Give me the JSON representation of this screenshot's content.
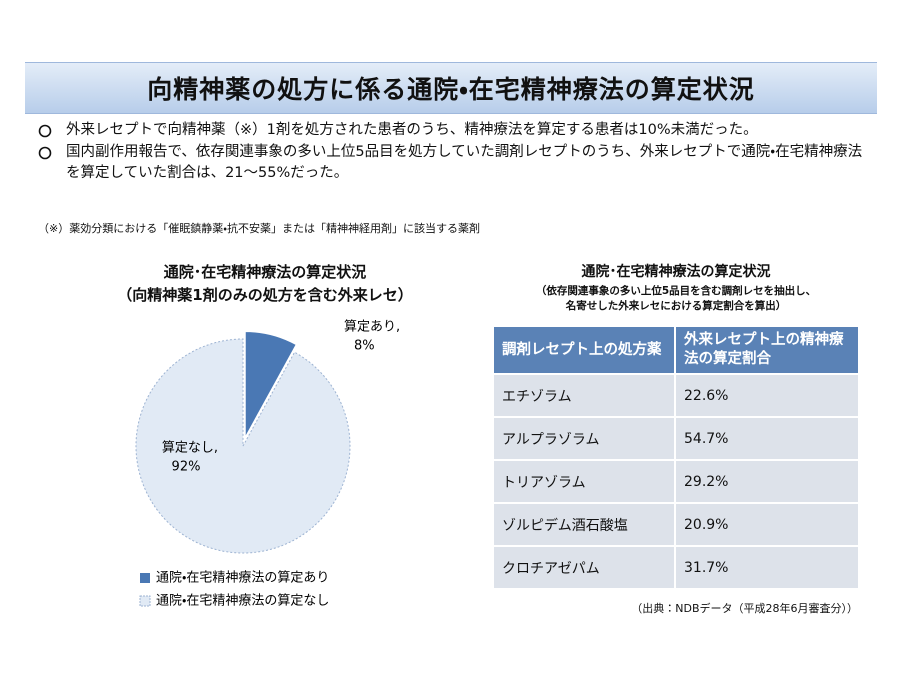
{
  "header": {
    "title": "向精神薬の処方に係る通院・在宅精神療法の算定状況"
  },
  "bullets": [
    "外来レセプトで向精神薬（※）1剤を処方された患者のうち、精神療法を算定する患者は10%未満だった。",
    "国内副作用報告で、依存関連事象の多い上位5品目を処方していた調剤レセプトのうち、外来レセプトで通院・在宅精神療法を算定していた割合は、21～55%だった。"
  ],
  "note": "（※）薬効分類における「催眠鎮静薬・抗不安薬」または「精神神経用剤」に該当する薬剤",
  "chart_data": {
    "type": "pie",
    "title": "通院･在宅精神療法の算定状況",
    "subtitle": "（向精神薬1剤のみの処方を含む外来レセ）",
    "categories": [
      "通院・在宅精神療法の算定あり",
      "通院・在宅精神療法の算定なし"
    ],
    "slice_labels": [
      "算定あり,",
      "算定なし,"
    ],
    "values": [
      8,
      92
    ],
    "value_labels": [
      "8%",
      "92%"
    ],
    "colors": [
      "#4a78b4",
      "#e1eaf5"
    ]
  },
  "table": {
    "title": "通院･在宅精神療法の算定状況",
    "subtitle": [
      "（依存関連事象の多い上位5品目を含む調剤レセを抽出し、",
      "名寄せした外来レセにおける算定割合を算出）"
    ],
    "header": [
      "調剤レセプト上の処方薬",
      "外来レセプト上の精神療法の算定割合"
    ],
    "rows": [
      [
        "エチゾラム",
        "22.6%"
      ],
      [
        "アルプラゾラム",
        "54.7%"
      ],
      [
        "トリアゾラム",
        "29.2%"
      ],
      [
        "ゾルピデム酒石酸塩",
        "20.9%"
      ],
      [
        "クロチアゼパム",
        "31.7%"
      ]
    ],
    "source": "（出典：NDBデータ（平成28年6月審査分））"
  }
}
